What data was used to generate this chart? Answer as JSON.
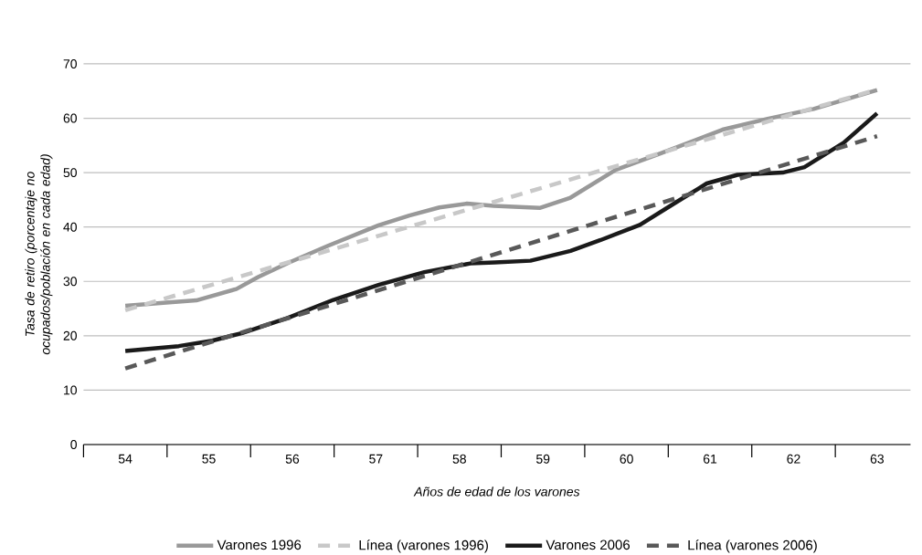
{
  "chart_data": {
    "type": "line",
    "xlabel": "Años de edad de los varones",
    "ylabel": "Tasa de retiro (porcentaje no ocupados/población en cada edad)",
    "xlim": [
      53.5,
      63.4
    ],
    "xticks": [
      54,
      55,
      56,
      57,
      58,
      59,
      60,
      61,
      62,
      63,
      {
        "value": 53.5,
        "label": null
      },
      {
        "value": 54.5,
        "label": null
      },
      {
        "value": 55.5,
        "label": null
      },
      {
        "value": 56.5,
        "label": null
      },
      {
        "value": 57.5,
        "label": null
      },
      {
        "value": 58.5,
        "label": null
      },
      {
        "value": 59.5,
        "label": null
      },
      {
        "value": 60.5,
        "label": null
      },
      {
        "value": 61.5,
        "label": null
      },
      {
        "value": 62.5,
        "label": null
      }
    ],
    "ylim": [
      0,
      70
    ],
    "yticks": [
      0,
      10,
      20,
      30,
      40,
      50,
      60,
      70
    ],
    "grid": "y",
    "legend": "bottom",
    "marker": "none",
    "series": [
      {
        "name": "Varones 1996",
        "color": "#999999",
        "line_style": "solid",
        "x": [
          54,
          54.49,
          54.85,
          55.33,
          55.59,
          55.95,
          56.42,
          57.03,
          57.4,
          57.76,
          58.09,
          58.41,
          58.96,
          59.33,
          59.87,
          60.42,
          61.15,
          61.69,
          62.24,
          63
        ],
        "values": [
          25.5,
          26.1,
          26.5,
          28.6,
          30.8,
          33.4,
          36.5,
          40.3,
          42.1,
          43.6,
          44.3,
          43.9,
          43.5,
          45.4,
          50.5,
          53.6,
          57.9,
          59.9,
          61.7,
          65.2
        ]
      },
      {
        "name": "Línea (varones 1996)",
        "color": "#c8c8c8",
        "line_style": "dashed",
        "x": [
          54,
          63
        ],
        "values": [
          24.7,
          65.3
        ]
      },
      {
        "name": "Varones 2006",
        "color": "#1a1a1a",
        "line_style": "solid",
        "x": [
          54,
          54.64,
          55.04,
          55.4,
          55.95,
          56.49,
          57.04,
          57.58,
          58.13,
          58.42,
          58.85,
          59.33,
          59.69,
          60.16,
          60.6,
          60.96,
          61.33,
          61.87,
          62.13,
          62.6,
          63
        ],
        "values": [
          17.2,
          18.1,
          19.1,
          20.5,
          23.3,
          26.6,
          29.4,
          31.7,
          33.3,
          33.5,
          33.8,
          35.6,
          37.6,
          40.4,
          44.6,
          48.0,
          49.6,
          50.0,
          51.0,
          55.5,
          60.9
        ]
      },
      {
        "name": "Línea (varones 2006)",
        "color": "#595959",
        "line_style": "dashed",
        "x": [
          54,
          63
        ],
        "values": [
          14.0,
          56.7
        ]
      }
    ]
  }
}
